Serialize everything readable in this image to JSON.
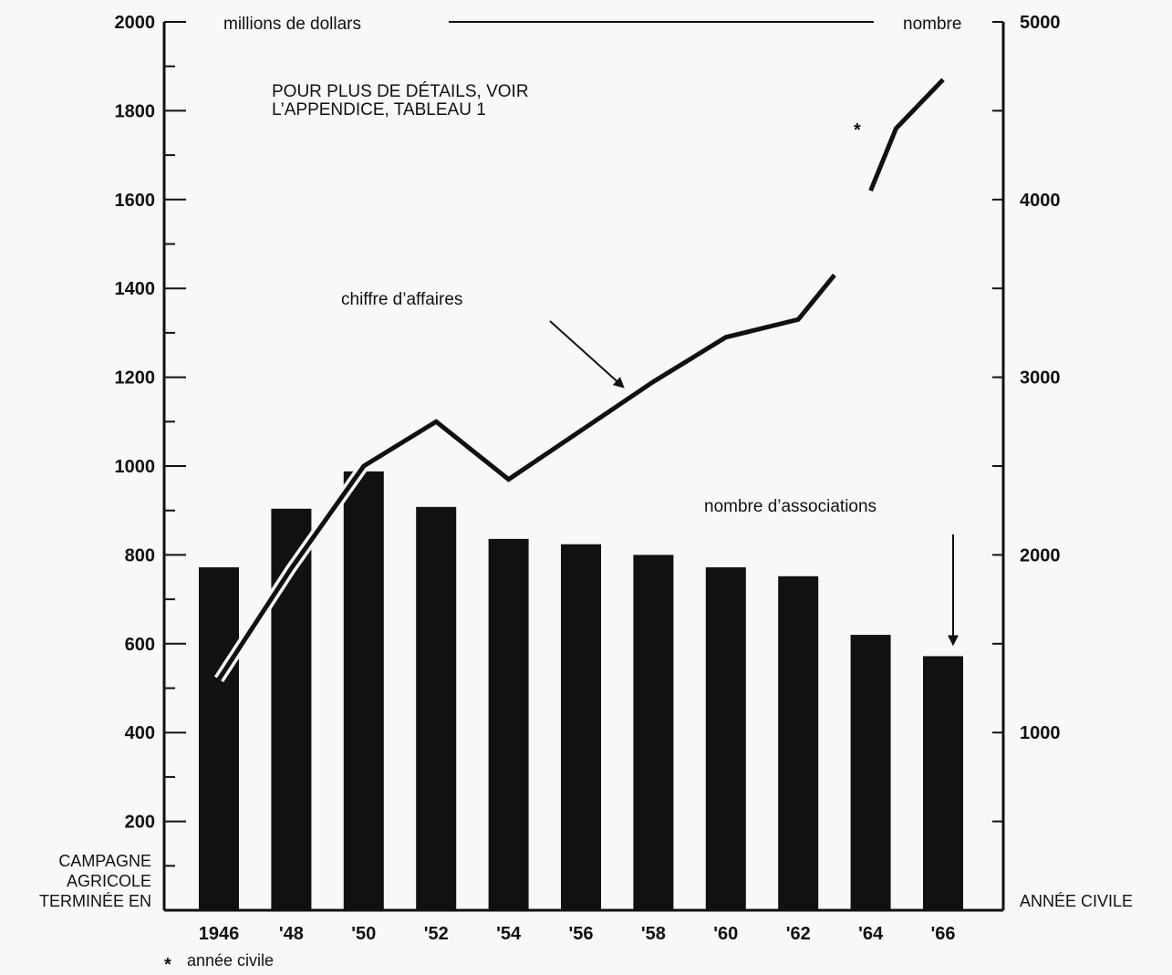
{
  "chart_data": {
    "type": "bar",
    "categories": [
      "1946",
      "'48",
      "'50",
      "'52",
      "'54",
      "'56",
      "'58",
      "'60",
      "'62",
      "'64",
      "'66"
    ],
    "y_left": {
      "label": "millions de dollars",
      "range": [
        0,
        2000
      ],
      "ticks": [
        200,
        400,
        600,
        800,
        1000,
        1200,
        1400,
        1600,
        1800,
        2000
      ]
    },
    "y_right": {
      "label": "nombre",
      "range": [
        0,
        5000
      ],
      "ticks": [
        1000,
        2000,
        3000,
        4000,
        5000
      ]
    },
    "series": [
      {
        "name": "nombre d’associations",
        "type": "bar",
        "axis": "right",
        "values": [
          1930,
          2260,
          2470,
          2270,
          2090,
          2060,
          2000,
          1930,
          1880,
          1550,
          1430
        ]
      },
      {
        "name": "chiffre d’affaires",
        "type": "line",
        "axis": "left",
        "segments": [
          {
            "x": [
              1946,
              1948,
              1950,
              1952,
              1954,
              1956,
              1958,
              1960,
              1962,
              1963
            ],
            "y": [
              520,
              770,
              1000,
              1100,
              970,
              1080,
              1190,
              1290,
              1330,
              1430
            ]
          },
          {
            "x": [
              1964,
              1964.7,
              1966
            ],
            "y": [
              1620,
              1760,
              1870
            ]
          }
        ]
      }
    ],
    "note": "POUR PLUS DE DÉTAILS, VOIR L’APPENDICE, TABLEAU 1",
    "footnote": "année civile",
    "footnote_symbol": "*",
    "left_axis_caption": [
      "CAMPAGNE",
      "AGRICOLE",
      "TERMINÉE EN"
    ],
    "right_axis_caption": "ANNÉE CIVILE",
    "colors": {
      "bars": "#111111",
      "line": "#111111",
      "background": "#f8f8f6"
    }
  }
}
